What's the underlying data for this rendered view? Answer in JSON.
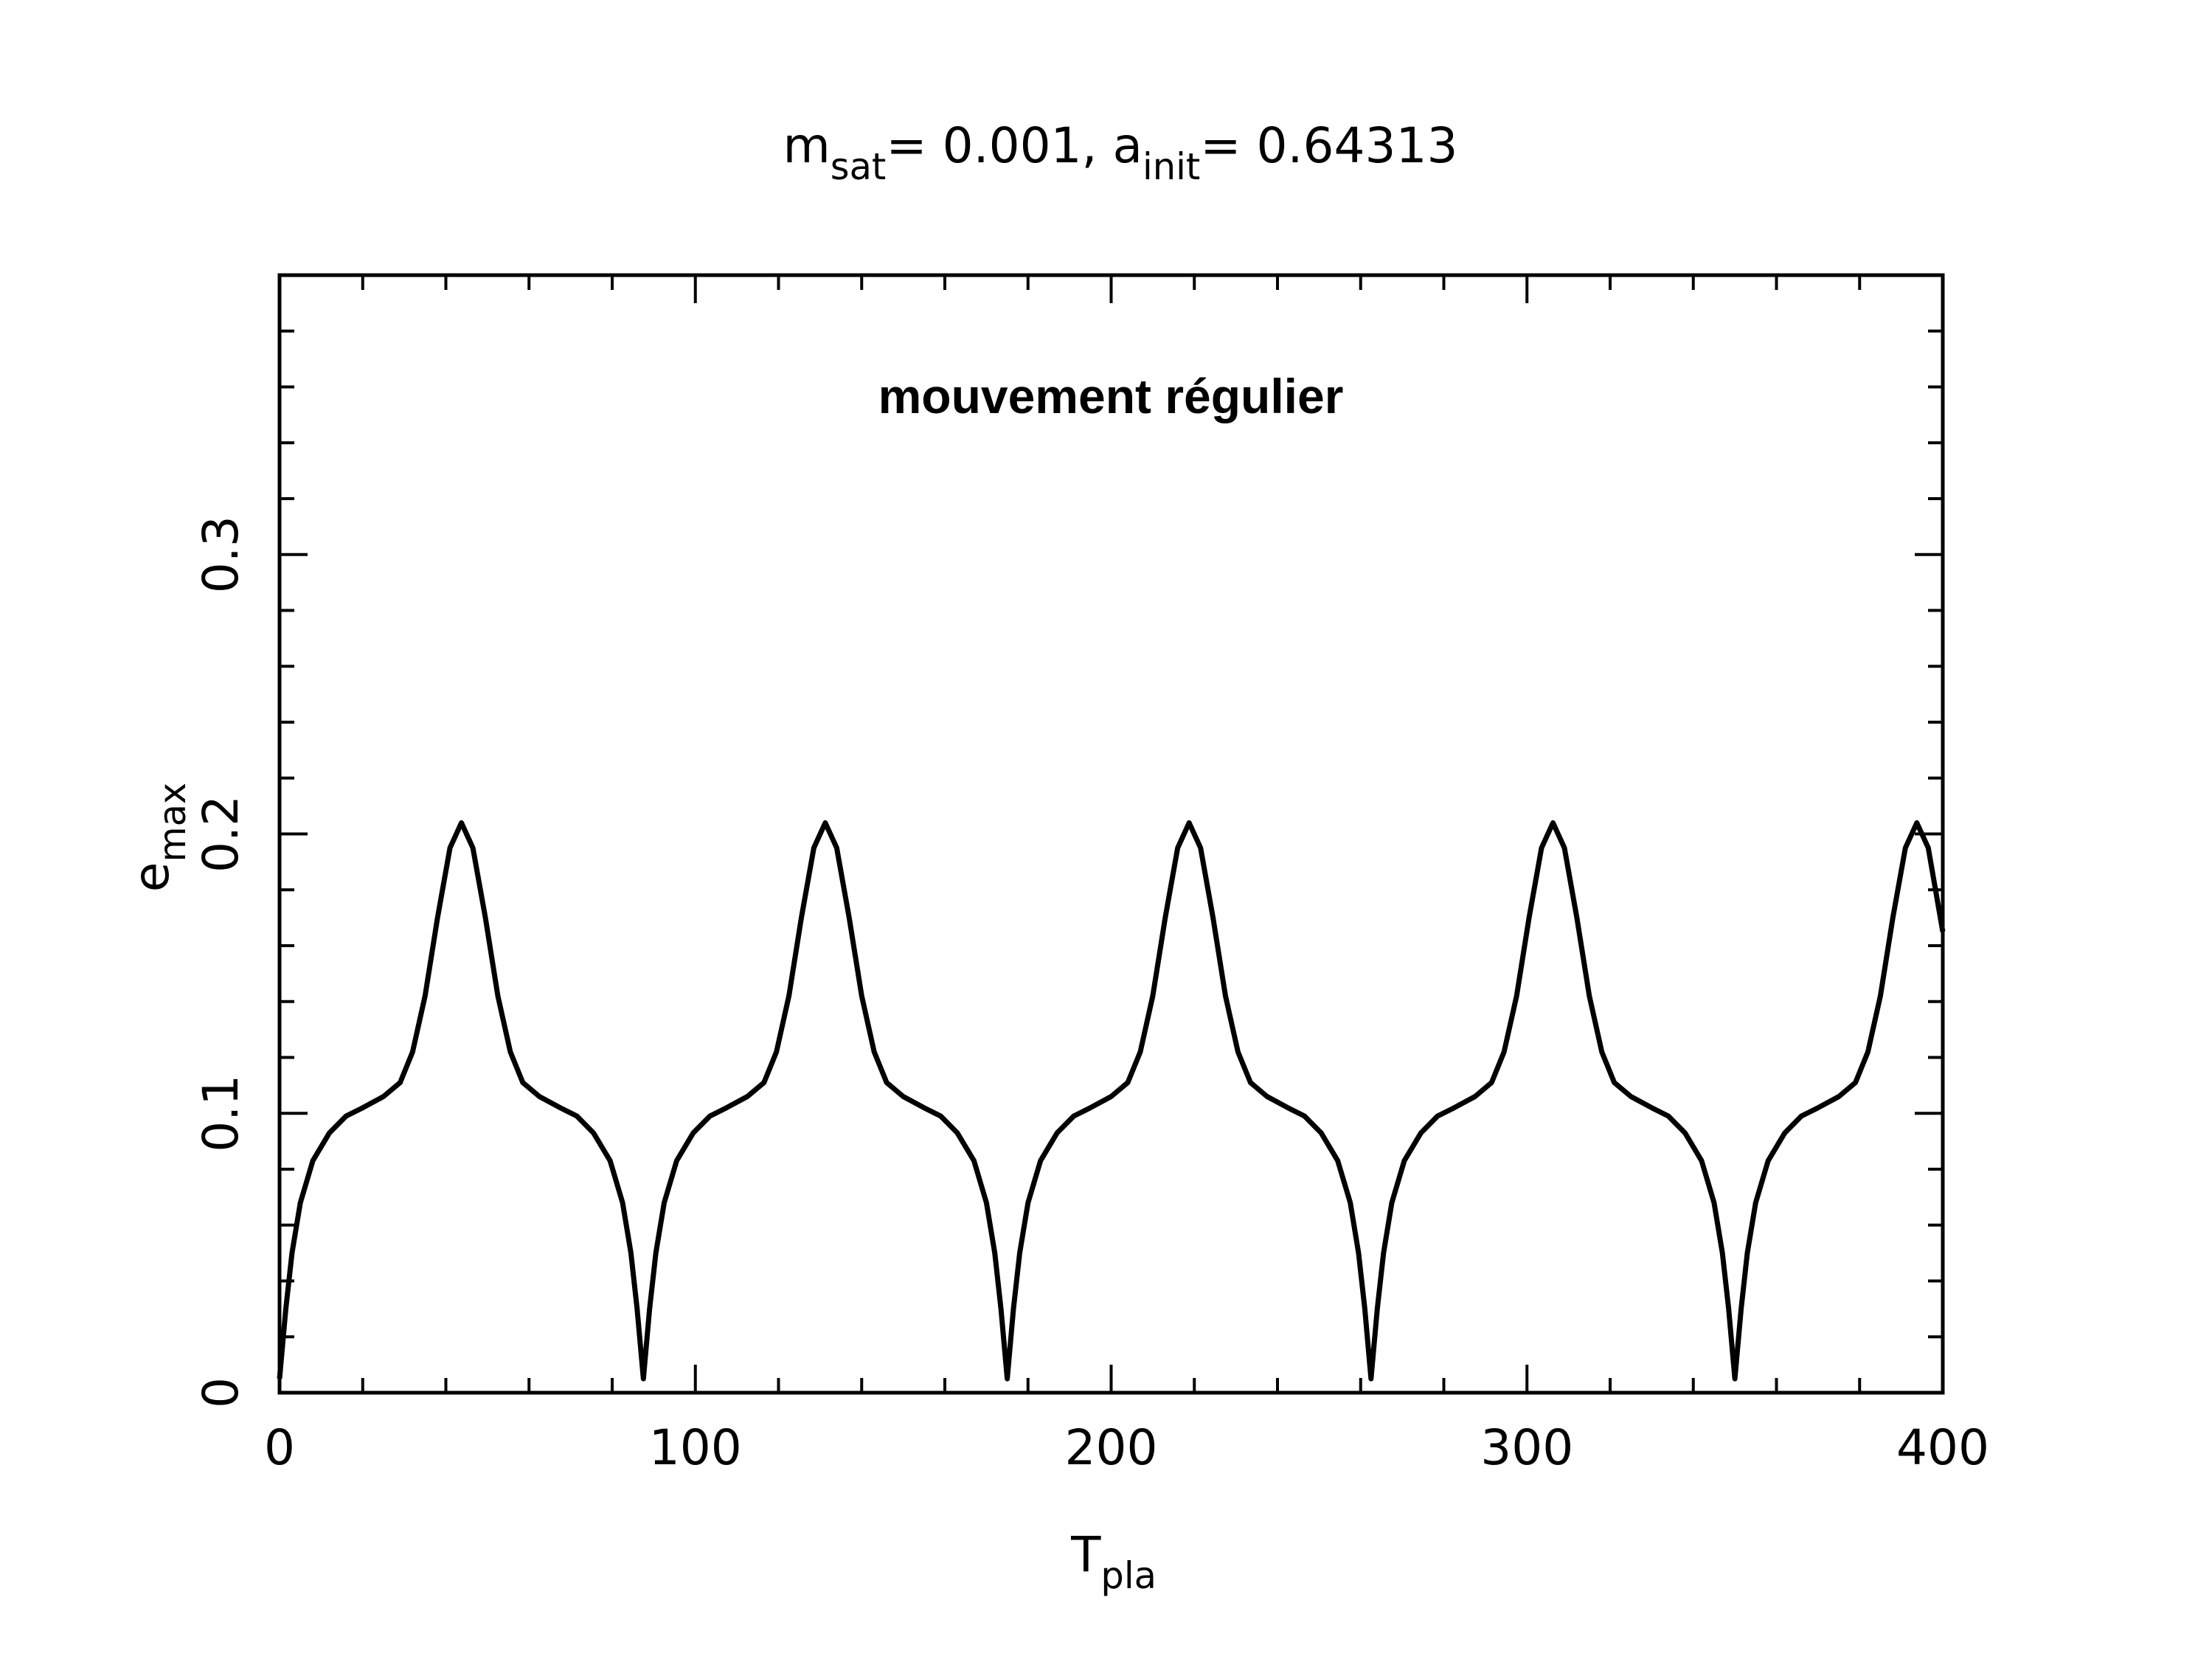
{
  "chart_data": {
    "type": "line",
    "title": [
      {
        "text": "m"
      },
      {
        "text": "sat",
        "sub": true
      },
      {
        "text": "= 0.001, a"
      },
      {
        "text": "init",
        "sub": true
      },
      {
        "text": "= 0.64313"
      }
    ],
    "xlabel": [
      {
        "text": "T"
      },
      {
        "text": "pla",
        "sub": true
      }
    ],
    "ylabel": [
      {
        "text": "e"
      },
      {
        "text": "max",
        "sub": true
      }
    ],
    "annotation": "mouvement régulier",
    "color": "#000000",
    "x": [
      0,
      1.5,
      3,
      5,
      8,
      12,
      16,
      20,
      25,
      29,
      32,
      35,
      38,
      41,
      43.75,
      46.5,
      49.5,
      52.5,
      55.5,
      58.5,
      62.5,
      67.5,
      71.5,
      75.5,
      79.5,
      82.5,
      84.5,
      86,
      87.5,
      89,
      90.5,
      92.5,
      95.5,
      99.5,
      103.5,
      107.5,
      112.5,
      116.5,
      119.5,
      122.5,
      125.5,
      128.5,
      131.25,
      134,
      137,
      140,
      143,
      146,
      150,
      155,
      159,
      163,
      167,
      170,
      172,
      173.5,
      175,
      176.5,
      178,
      180,
      183,
      187,
      191,
      195,
      200,
      204,
      207,
      210,
      213,
      216,
      218.75,
      221.5,
      224.5,
      227.5,
      230.5,
      233.5,
      237.5,
      242.5,
      246.5,
      250.5,
      254.5,
      257.5,
      259.5,
      261,
      262.5,
      264,
      265.5,
      267.5,
      270.5,
      274.5,
      278.5,
      282.5,
      287.5,
      291.5,
      294.5,
      297.5,
      300.5,
      303.5,
      306.25,
      309,
      312,
      315,
      318,
      321,
      325,
      330,
      334,
      338,
      342,
      345,
      347,
      348.5,
      350,
      351.5,
      353,
      355,
      358,
      362,
      366,
      370,
      375,
      379,
      382,
      385,
      388,
      391,
      393.75,
      396.5,
      400
    ],
    "values": [
      0.005,
      0.03,
      0.05,
      0.068,
      0.083,
      0.093,
      0.099,
      0.102,
      0.106,
      0.111,
      0.122,
      0.142,
      0.17,
      0.195,
      0.204,
      0.195,
      0.17,
      0.142,
      0.122,
      0.111,
      0.106,
      0.102,
      0.099,
      0.093,
      0.083,
      0.068,
      0.05,
      0.03,
      0.005,
      0.03,
      0.05,
      0.068,
      0.083,
      0.093,
      0.099,
      0.102,
      0.106,
      0.111,
      0.122,
      0.142,
      0.17,
      0.195,
      0.204,
      0.195,
      0.17,
      0.142,
      0.122,
      0.111,
      0.106,
      0.102,
      0.099,
      0.093,
      0.083,
      0.068,
      0.05,
      0.03,
      0.005,
      0.03,
      0.05,
      0.068,
      0.083,
      0.093,
      0.099,
      0.102,
      0.106,
      0.111,
      0.122,
      0.142,
      0.17,
      0.195,
      0.204,
      0.195,
      0.17,
      0.142,
      0.122,
      0.111,
      0.106,
      0.102,
      0.099,
      0.093,
      0.083,
      0.068,
      0.05,
      0.03,
      0.005,
      0.03,
      0.05,
      0.068,
      0.083,
      0.093,
      0.099,
      0.102,
      0.106,
      0.111,
      0.122,
      0.142,
      0.17,
      0.195,
      0.204,
      0.195,
      0.17,
      0.142,
      0.122,
      0.111,
      0.106,
      0.102,
      0.099,
      0.093,
      0.083,
      0.068,
      0.05,
      0.03,
      0.005,
      0.03,
      0.05,
      0.068,
      0.083,
      0.093,
      0.099,
      0.102,
      0.106,
      0.111,
      0.122,
      0.142,
      0.17,
      0.195,
      0.204,
      0.195,
      0.165
    ],
    "xlim": [
      0,
      400
    ],
    "ylim": [
      0,
      0.4
    ],
    "xticks": [
      0,
      100,
      200,
      300,
      400
    ],
    "yticks": [
      0,
      0.1,
      0.2,
      0.3
    ],
    "xminorticks": [
      20,
      40,
      60,
      80,
      120,
      140,
      160,
      180,
      220,
      240,
      260,
      280,
      320,
      340,
      360,
      380
    ],
    "yminorticks": [
      0.02,
      0.04,
      0.06,
      0.08,
      0.12,
      0.14,
      0.16,
      0.18,
      0.22,
      0.24,
      0.26,
      0.28,
      0.32,
      0.34,
      0.36,
      0.38
    ],
    "grid": false
  }
}
